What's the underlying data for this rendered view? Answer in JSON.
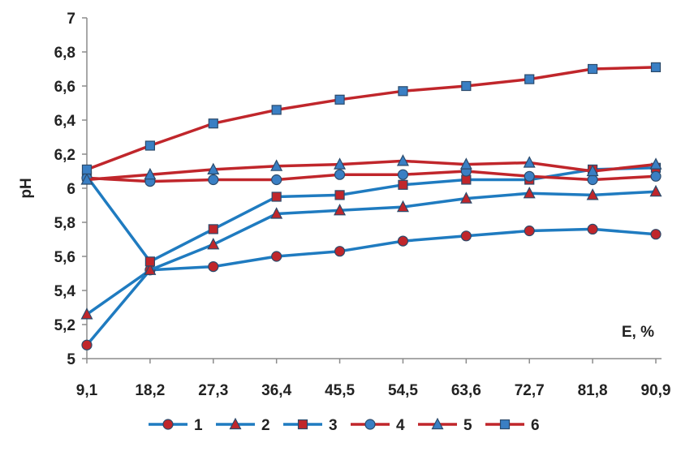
{
  "chart_data": {
    "type": "line",
    "title": "",
    "xlabel": "E, %",
    "ylabel": "pH",
    "categories": [
      "9,1",
      "18,2",
      "27,3",
      "36,4",
      "45,5",
      "54,5",
      "63,6",
      "72,7",
      "81,8",
      "90,9"
    ],
    "yticks": [
      "5",
      "5,2",
      "5,4",
      "5,6",
      "5,8",
      "6",
      "6,2",
      "6,4",
      "6,6",
      "6,8",
      "7"
    ],
    "ylim": [
      5,
      7
    ],
    "grid": false,
    "legend_position": "bottom",
    "series": [
      {
        "name": "1",
        "color": "#1f7bc0",
        "marker_color": "#c0262b",
        "marker": "circle",
        "values": [
          5.08,
          5.52,
          5.54,
          5.6,
          5.63,
          5.69,
          5.72,
          5.75,
          5.76,
          5.73
        ]
      },
      {
        "name": "2",
        "color": "#1f7bc0",
        "marker_color": "#c0262b",
        "marker": "triangle",
        "values": [
          5.26,
          5.52,
          5.67,
          5.85,
          5.87,
          5.89,
          5.94,
          5.97,
          5.96,
          5.98
        ]
      },
      {
        "name": "3",
        "color": "#1f7bc0",
        "marker_color": "#c0262b",
        "marker": "square",
        "values": [
          6.07,
          5.57,
          5.76,
          5.95,
          5.96,
          6.02,
          6.05,
          6.05,
          6.11,
          6.12
        ]
      },
      {
        "name": "4",
        "color": "#c0262b",
        "marker_color": "#3a7fc4",
        "marker": "circle",
        "values": [
          6.06,
          6.04,
          6.05,
          6.05,
          6.08,
          6.08,
          6.1,
          6.07,
          6.05,
          6.07
        ]
      },
      {
        "name": "5",
        "color": "#c0262b",
        "marker_color": "#3a7fc4",
        "marker": "triangle",
        "values": [
          6.05,
          6.08,
          6.11,
          6.13,
          6.14,
          6.16,
          6.14,
          6.15,
          6.1,
          6.14
        ]
      },
      {
        "name": "6",
        "color": "#c0262b",
        "marker_color": "#3a7fc4",
        "marker": "square",
        "values": [
          6.11,
          6.25,
          6.38,
          6.46,
          6.52,
          6.57,
          6.6,
          6.64,
          6.7,
          6.71
        ]
      }
    ]
  }
}
